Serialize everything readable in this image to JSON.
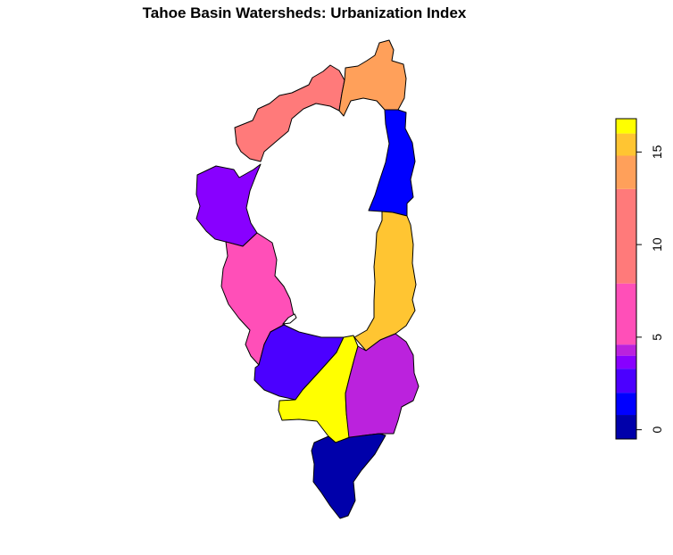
{
  "chart_data": {
    "type": "choropleth",
    "title": "Tahoe Basin Watersheds: Urbanization Index",
    "legend": {
      "placement": "right",
      "zlim": [
        -0.5,
        16.8
      ],
      "ticks": [
        0,
        5,
        10,
        15
      ],
      "bins": [
        {
          "from": -0.5,
          "to": 0.8,
          "color": "#0000AA"
        },
        {
          "from": 0.8,
          "to": 2.0,
          "color": "#0000FF"
        },
        {
          "from": 2.0,
          "to": 3.3,
          "color": "#4B00FF"
        },
        {
          "from": 3.3,
          "to": 4.0,
          "color": "#8800FF"
        },
        {
          "from": 4.0,
          "to": 4.6,
          "color": "#BB22DD"
        },
        {
          "from": 4.6,
          "to": 7.9,
          "color": "#FF4FB8"
        },
        {
          "from": 7.9,
          "to": 13.0,
          "color": "#FF7A7A"
        },
        {
          "from": 13.0,
          "to": 14.8,
          "color": "#FFA05A"
        },
        {
          "from": 14.8,
          "to": 16.0,
          "color": "#FFC532"
        },
        {
          "from": 16.0,
          "to": 16.8,
          "color": "#FFFF00"
        }
      ]
    },
    "regions": [
      {
        "id": "north-west-shore",
        "value": 10,
        "color": "#FF7A7A"
      },
      {
        "id": "north-shore",
        "value": 14,
        "color": "#FFA05A"
      },
      {
        "id": "north-east-shore",
        "value": 1.5,
        "color": "#0000FF"
      },
      {
        "id": "west-shore",
        "value": 3.7,
        "color": "#8800FF"
      },
      {
        "id": "south-west-shore",
        "value": 6,
        "color": "#FF4FB8"
      },
      {
        "id": "south-east-shore",
        "value": 15.5,
        "color": "#FFC532"
      },
      {
        "id": "south-shore-west",
        "value": 2.7,
        "color": "#4B00FF"
      },
      {
        "id": "south-shore-central",
        "value": 16.5,
        "color": "#FFFF00"
      },
      {
        "id": "south-shore-east",
        "value": 4.3,
        "color": "#BB22DD"
      },
      {
        "id": "upper-truckee",
        "value": 0,
        "color": "#0000AA"
      }
    ]
  }
}
